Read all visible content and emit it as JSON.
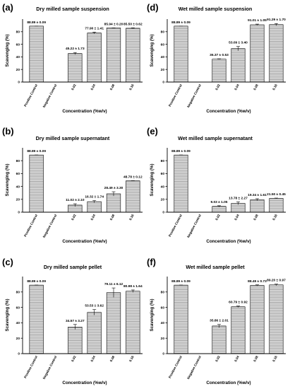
{
  "colors": {
    "bar_fill": "#ffffff",
    "bar_stroke": "#000000",
    "hatch": "#555555",
    "axis": "#000000"
  },
  "chart_data": [
    {
      "panel": "(a)",
      "type": "bar",
      "title": "Dry milled sample suspension",
      "xlabel": "Concentration (%w/v)",
      "ylabel": "Scavenging (%)",
      "ylim": [
        0,
        100
      ],
      "yticks": [
        "0",
        "20",
        "40",
        "60",
        "80"
      ],
      "categories": [
        "Positive Control",
        "Negative Control",
        "0.02",
        "0.04",
        "0.08",
        "0.16"
      ],
      "values": [
        88.89,
        0,
        45.22,
        77.9,
        85.94,
        85.5
      ],
      "errors": [
        0.09,
        0,
        1.73,
        1.41,
        0.2,
        0.62
      ],
      "labels": [
        "88.89 ± 0.09",
        "",
        "45.22 ± 1.73",
        "77.90 ± 1.41",
        "85.94 ± 0.20",
        "85.50 ± 0.62"
      ]
    },
    {
      "panel": "(d)",
      "type": "bar",
      "title": "Wet milled sample suspension",
      "xlabel": "Concentration (%w/v)",
      "ylabel": "Scavenging (%)",
      "ylim": [
        0,
        100
      ],
      "yticks": [
        "0",
        "20",
        "40",
        "60",
        "80"
      ],
      "categories": [
        "Positive Control",
        "Negative Control",
        "0.02",
        "0.04",
        "0.08",
        "0.16"
      ],
      "values": [
        88.89,
        0,
        36.37,
        53.09,
        91.01,
        91.29
      ],
      "errors": [
        0.09,
        0,
        0.53,
        3.4,
        1.05,
        1.7
      ],
      "labels": [
        "88.89 ± 0.09",
        "",
        "36.37 ± 0.53",
        "53.09 ± 3.40",
        "91.01 ± 1.05",
        "91.29 ± 1.70"
      ]
    },
    {
      "panel": "(b)",
      "type": "bar",
      "title": "Dry milled sample supernatant",
      "xlabel": "Concentration (%w/v)",
      "ylabel": "Scavenging (%)",
      "ylim": [
        0,
        100
      ],
      "yticks": [
        "0",
        "20",
        "40",
        "60",
        "80"
      ],
      "categories": [
        "Positive Control",
        "Negative Control",
        "0.02",
        "0.04",
        "0.08",
        "0.16"
      ],
      "values": [
        88.89,
        0,
        11.02,
        16.32,
        28.49,
        48.78
      ],
      "errors": [
        0.09,
        0,
        2.1,
        1.74,
        3.3,
        0.12
      ],
      "labels": [
        "88.89 ± 0.09",
        "",
        "11.02 ± 2.10",
        "16.32 ± 1.74",
        "28.49 ± 3.30",
        "48.78 ± 0.12"
      ]
    },
    {
      "panel": "(e)",
      "type": "bar",
      "title": "Wet milled sample supernatant",
      "xlabel": "Concentration (%w/v)",
      "ylabel": "Scavenging (%)",
      "ylim": [
        0,
        100
      ],
      "yticks": [
        "0",
        "20",
        "40",
        "60",
        "80"
      ],
      "categories": [
        "Positive Control",
        "Negative Control",
        "0.02",
        "0.04",
        "0.08",
        "0.16"
      ],
      "values": [
        88.89,
        0,
        9.03,
        13.78,
        19.34,
        21.5
      ],
      "errors": [
        0.09,
        0,
        1.05,
        2.27,
        1.61,
        0.45
      ],
      "labels": [
        "88.89 ± 0.09",
        "",
        "9.03 ± 1.05",
        "13.78 ± 2.27",
        "19.34 ± 1.61",
        "21.50 ± 0.45"
      ]
    },
    {
      "panel": "(c)",
      "type": "bar",
      "title": "Dry milled sample pellet",
      "xlabel": "Concentration (%w/v)",
      "ylabel": "Scavenging (%)",
      "ylim": [
        0,
        100
      ],
      "yticks": [
        "0",
        "20",
        "40",
        "60",
        "80"
      ],
      "categories": [
        "Positive Control",
        "Negative Control",
        "0.02",
        "0.04",
        "0.08",
        "0.16"
      ],
      "values": [
        88.89,
        0,
        34.57,
        53.53,
        79.11,
        80.98
      ],
      "errors": [
        0.09,
        0,
        3.27,
        3.62,
        6.12,
        1.64
      ],
      "labels": [
        "88.89 ± 0.09",
        "",
        "34.57 ± 3.27",
        "53.53 ± 3.62",
        "79.11 ± 6.12",
        "80.98 ± 1.64"
      ]
    },
    {
      "panel": "(f)",
      "type": "bar",
      "title": "Wet milled sample pellet",
      "xlabel": "Concentration (%w/v)",
      "ylabel": "Scavenging (%)",
      "ylim": [
        0,
        100
      ],
      "yticks": [
        "0",
        "20",
        "40",
        "60",
        "80"
      ],
      "categories": [
        "Positive Control",
        "Negative Control",
        "0.02",
        "0.04",
        "0.08",
        "0.16"
      ],
      "values": [
        88.89,
        0,
        35.86,
        60.79,
        88.49,
        89.2
      ],
      "errors": [
        0.09,
        0,
        2.01,
        0.92,
        0.73,
        0.97
      ],
      "labels": [
        "88.89 ± 0.09",
        "",
        "35.86 ± 2.01",
        "60.79 ± 0.92",
        "88.49 ± 0.73",
        "89.20 ± 0.97"
      ]
    }
  ]
}
